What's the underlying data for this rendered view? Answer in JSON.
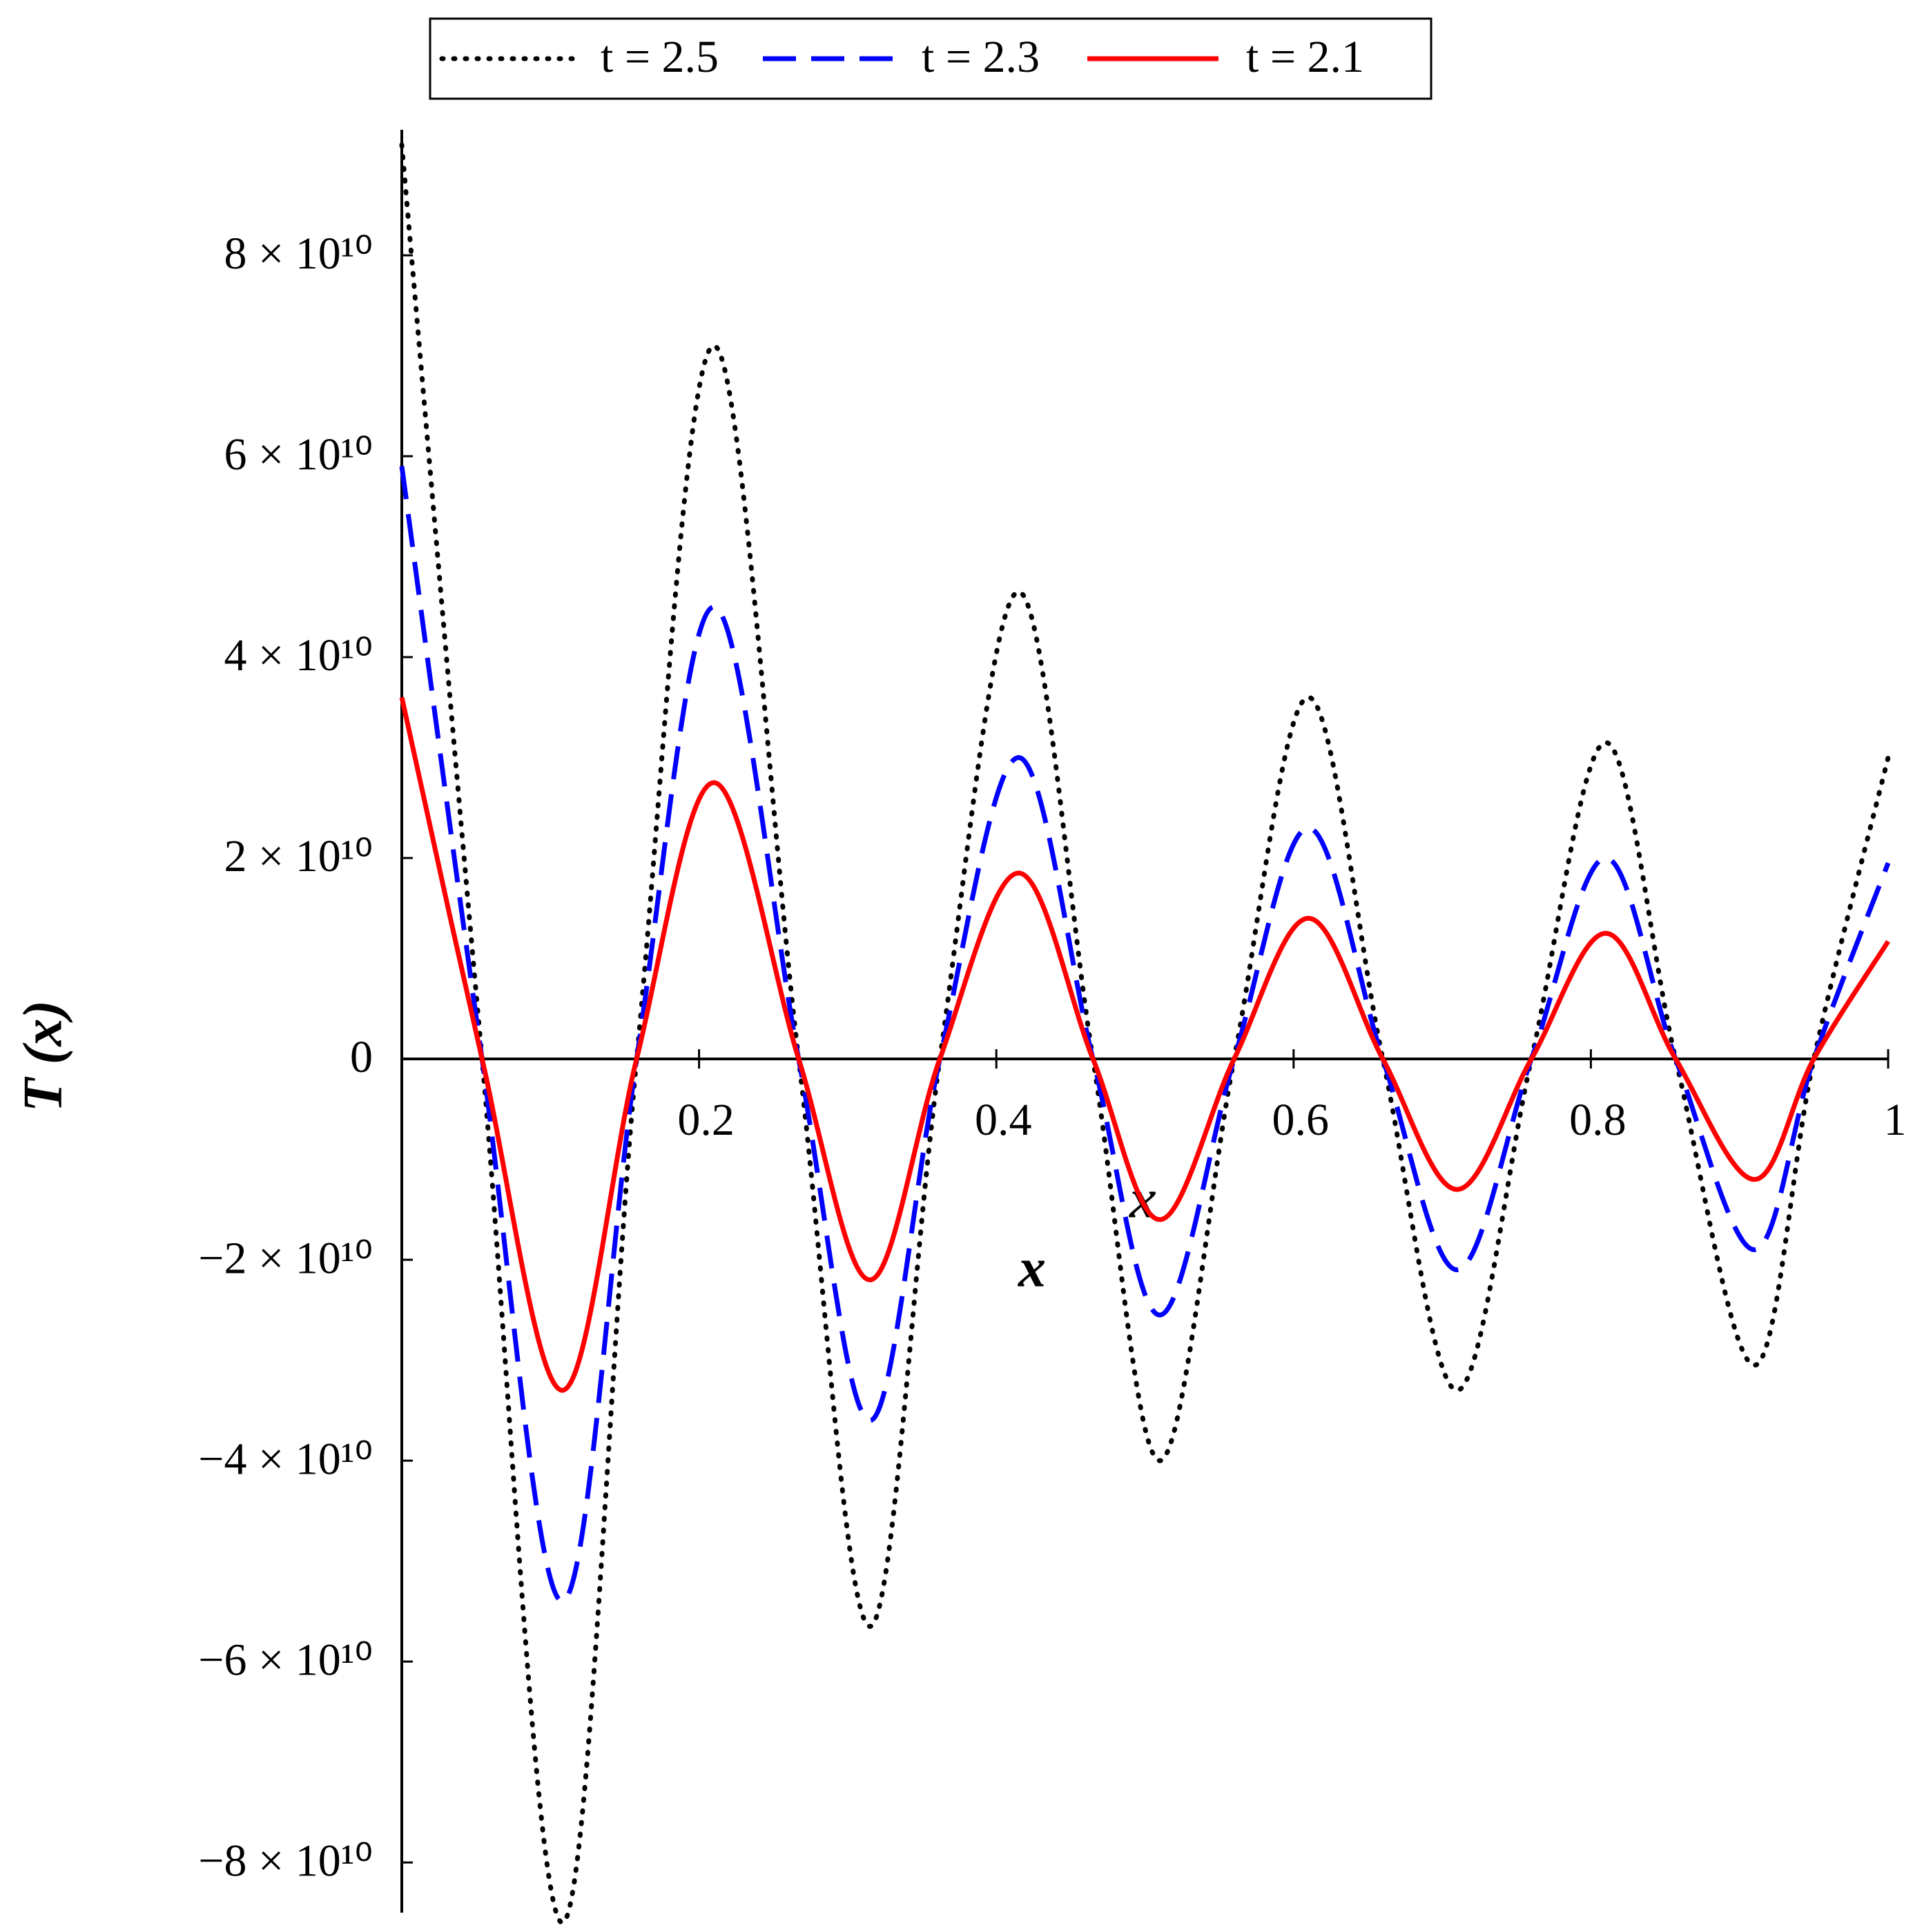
{
  "chart_data": {
    "type": "line",
    "x_label": "x",
    "y_label": "T (x)",
    "annotations": [
      "x"
    ],
    "x": [
      0,
      0.054,
      0.108,
      0.158,
      0.21,
      0.267,
      0.315,
      0.362,
      0.415,
      0.465,
      0.51,
      0.56,
      0.61,
      0.66,
      0.71,
      0.76,
      0.81,
      0.857,
      0.91,
      0.95,
      1.0
    ],
    "series": [
      {
        "name": "t = 2.5",
        "color": "#000000",
        "style": "dotted",
        "values": [
          91000000000,
          0,
          -86000000000,
          0,
          71000000000,
          0,
          -56500000000,
          0,
          46500000000,
          0,
          -40000000000,
          0,
          36000000000,
          0,
          -33000000000,
          0,
          31500000000,
          0,
          -30500000000,
          0,
          30000000000
        ]
      },
      {
        "name": "t = 2.3",
        "color": "#0000ff",
        "style": "dashed",
        "values": [
          59000000000,
          0,
          -54000000000,
          0,
          45000000000,
          0,
          -36000000000,
          0,
          30000000000,
          0,
          -25500000000,
          0,
          23000000000,
          0,
          -21000000000,
          0,
          20000000000,
          0,
          -19000000000,
          0,
          19500000000
        ]
      },
      {
        "name": "t = 2.1",
        "color": "#ff0000",
        "style": "solid",
        "values": [
          36000000000,
          0,
          -33000000000,
          0,
          27500000000,
          0,
          -22000000000,
          0,
          18500000000,
          0,
          -16000000000,
          0,
          14000000000,
          0,
          -13000000000,
          0,
          12500000000,
          0,
          -12000000000,
          0,
          11700000000
        ]
      }
    ],
    "xlim": [
      0,
      1
    ],
    "ylim": [
      -85000000000,
      92500000000
    ],
    "xticks": [
      0.2,
      0.4,
      0.6,
      0.8,
      1
    ],
    "yticks": [
      {
        "value": -80000000000,
        "label": "−8 × 10¹⁰"
      },
      {
        "value": -60000000000,
        "label": "−6 × 10¹⁰"
      },
      {
        "value": -40000000000,
        "label": "−4 × 10¹⁰"
      },
      {
        "value": -20000000000,
        "label": "−2 × 10¹⁰"
      },
      0,
      {
        "value": 20000000000,
        "label": "2 × 10¹⁰"
      },
      {
        "value": 40000000000,
        "label": "4 × 10¹⁰"
      },
      {
        "value": 60000000000,
        "label": "6 × 10¹⁰"
      },
      {
        "value": 80000000000,
        "label": "8 × 10¹⁰"
      }
    ],
    "legend": "top"
  }
}
